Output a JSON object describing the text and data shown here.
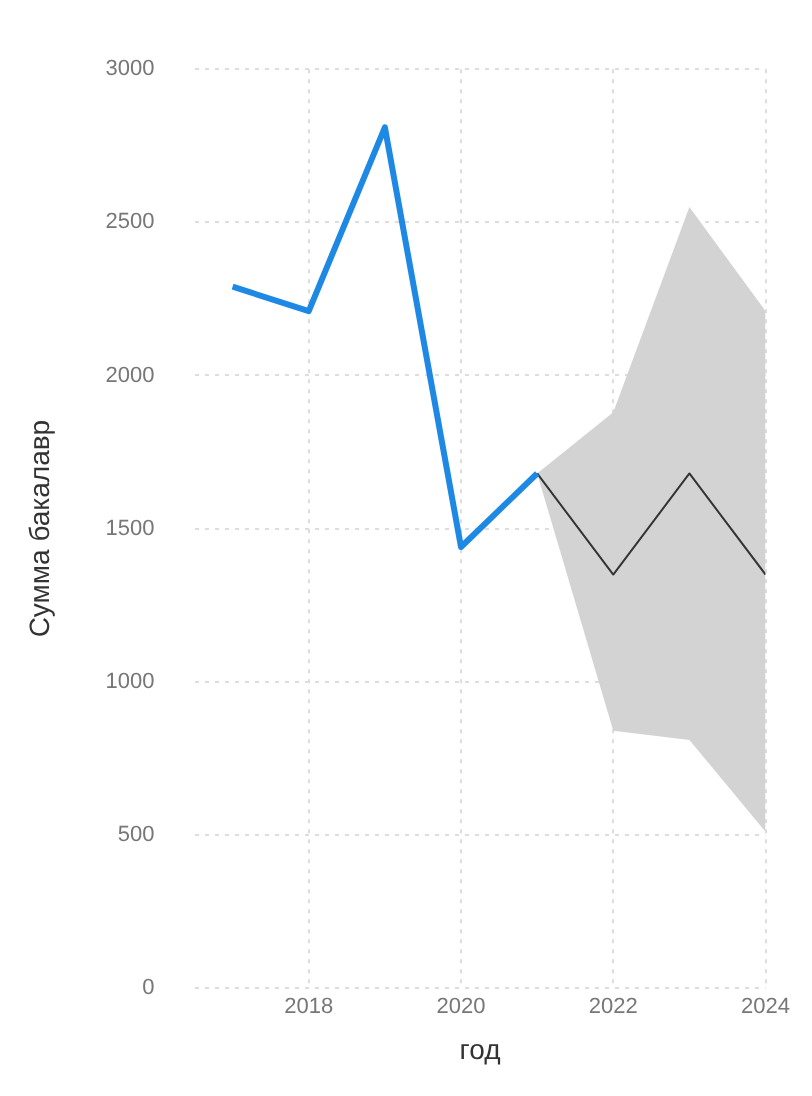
{
  "chart_data": {
    "type": "line",
    "xlabel": "год",
    "ylabel": "Сумма бакалавр",
    "xlim": [
      2016.5,
      2024
    ],
    "xticks": [
      2018,
      2020,
      2022,
      2024
    ],
    "ylim": [
      0,
      3000
    ],
    "yticks": [
      0,
      500,
      1000,
      1500,
      2000,
      2500,
      3000
    ],
    "grid": true,
    "legend": false,
    "marker": "none",
    "line_style": "solid",
    "series": [
      {
        "color": "#1e88e5",
        "x": [
          2017,
          2018,
          2019,
          2020,
          2021
        ],
        "values": [
          2290,
          2210,
          2810,
          1440,
          1680
        ]
      },
      {
        "color": "#333333",
        "x": [
          2021,
          2022,
          2023,
          2024
        ],
        "values": [
          1680,
          1350,
          1680,
          1350
        ],
        "lower": [
          1680,
          840,
          810,
          510
        ],
        "upper": [
          1680,
          1880,
          2550,
          2210
        ]
      }
    ]
  }
}
